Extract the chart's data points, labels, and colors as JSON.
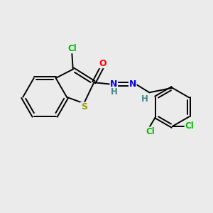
{
  "bg_color": "#ebebeb",
  "bond_color": "#000000",
  "atom_colors": {
    "Cl": "#00bb00",
    "S": "#999900",
    "O": "#ff0000",
    "N": "#0000ee",
    "H": "#448888",
    "C": "#000000"
  },
  "lw": 1.4,
  "fs": 8.5,
  "xlim": [
    0,
    10
  ],
  "ylim": [
    0,
    10
  ]
}
